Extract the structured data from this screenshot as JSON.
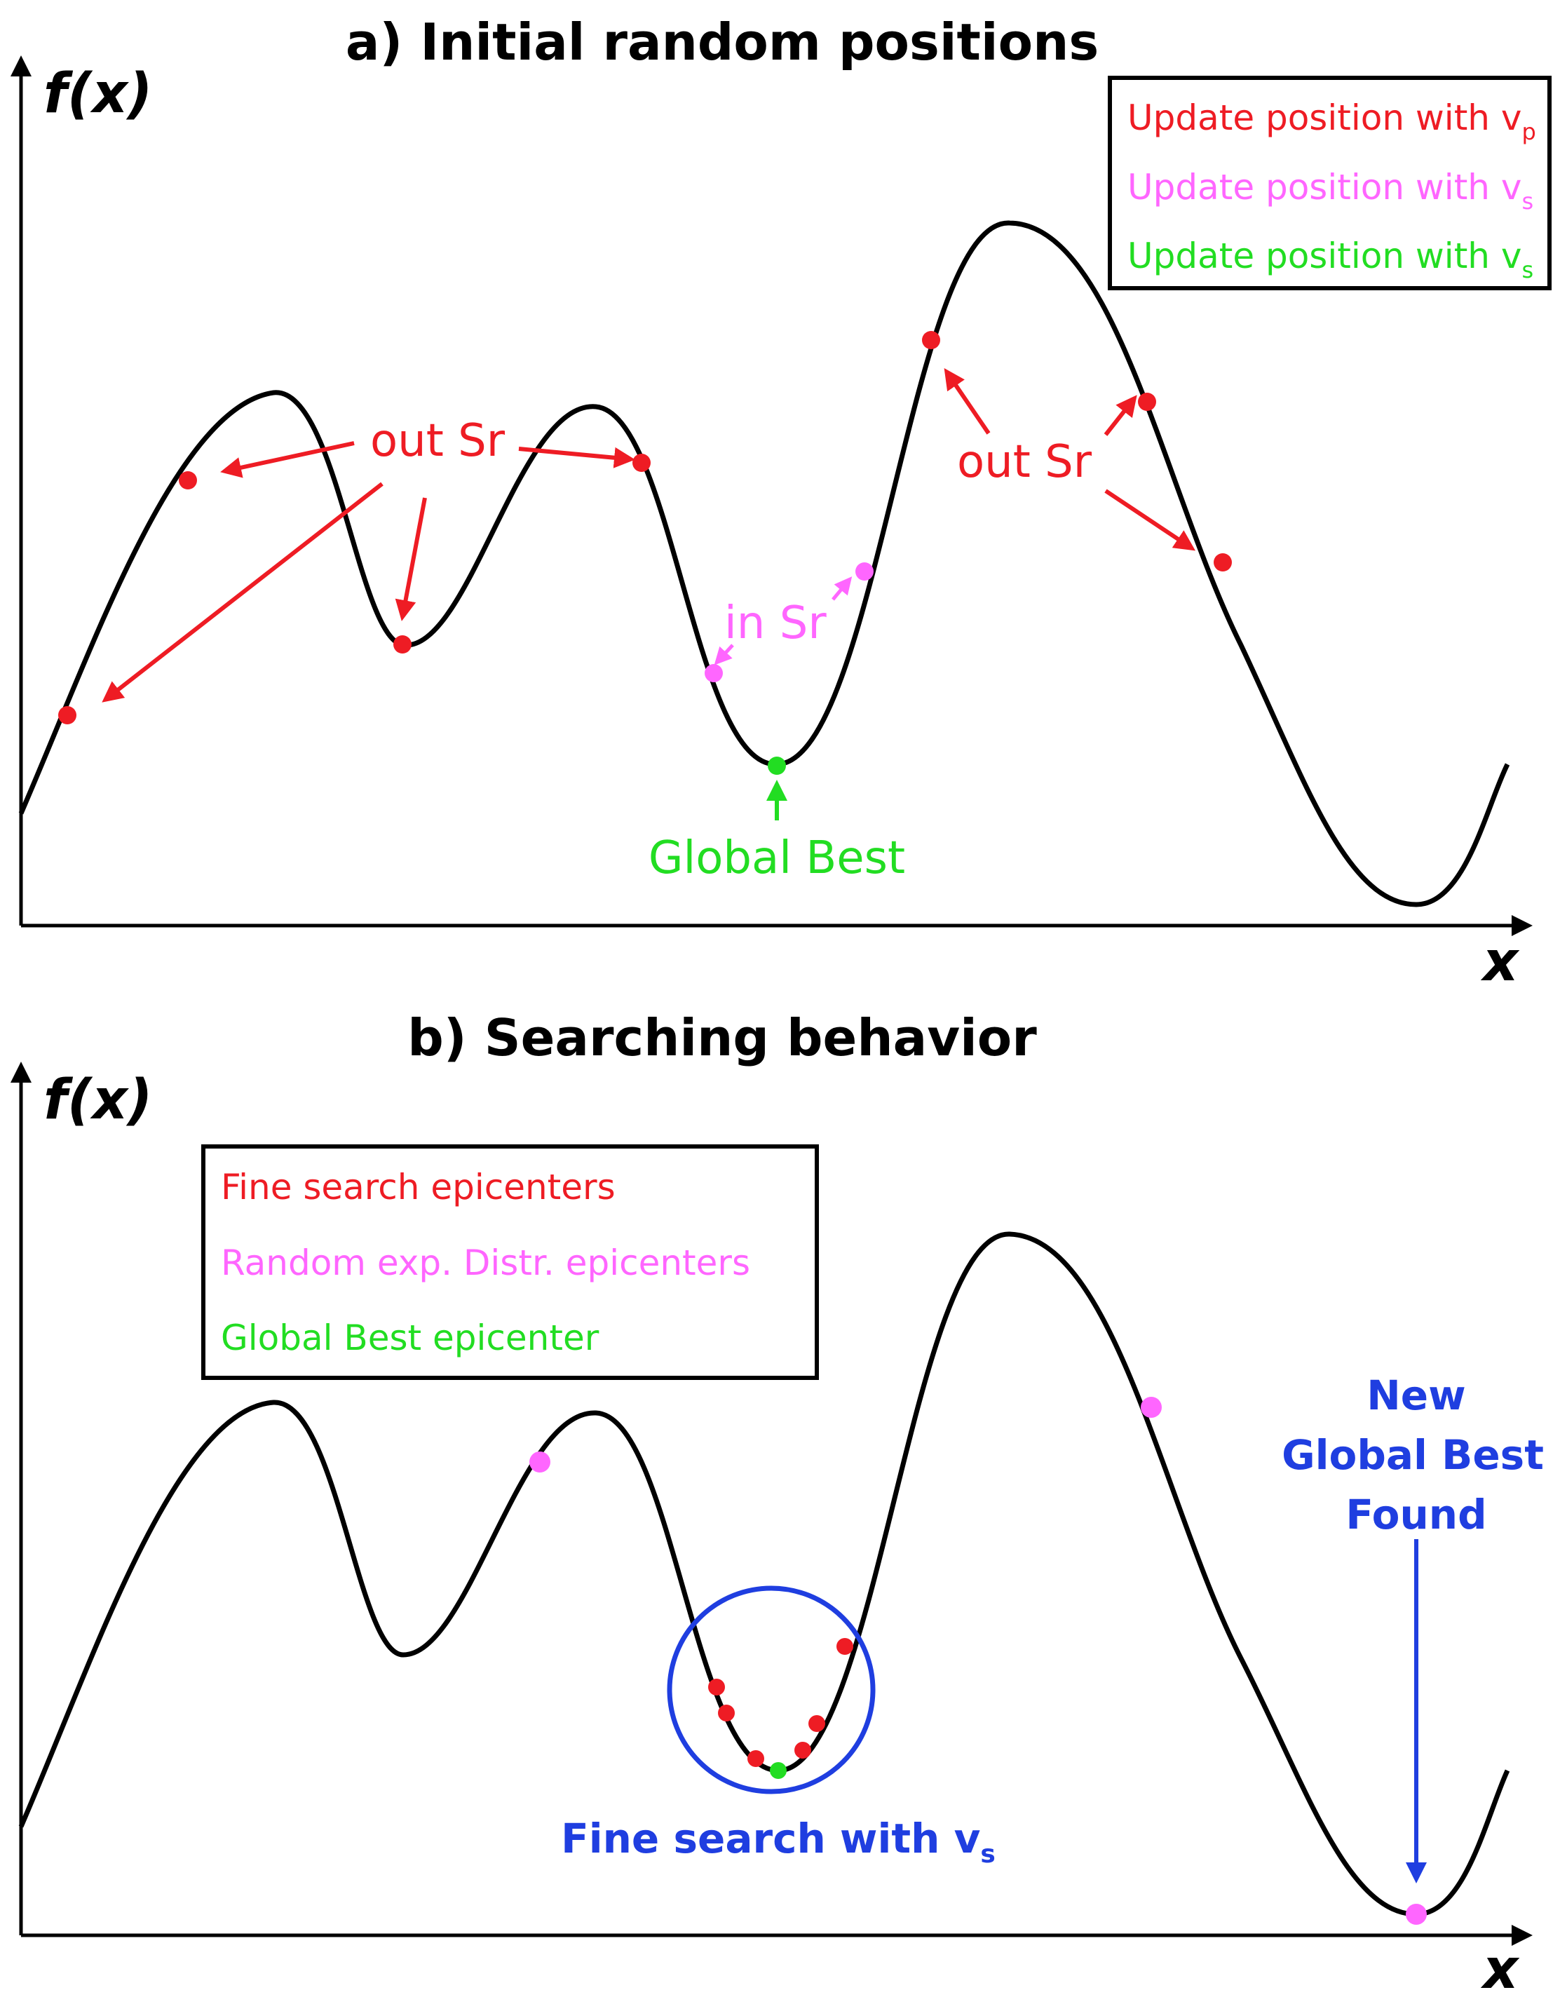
{
  "colors": {
    "red": "#ee1c24",
    "magenta": "#ff66ff",
    "green": "#22dd22",
    "blue": "#1f3ee0",
    "black": "#000000"
  },
  "panel_a": {
    "title": "a) Initial random positions",
    "y_label": "f(x)",
    "x_label": "x",
    "legend": [
      {
        "text": "Update position with v",
        "sub": "p",
        "color": "red"
      },
      {
        "text": "Update position with v",
        "sub": "s",
        "color": "magenta"
      },
      {
        "text": "Update position with v",
        "sub": "s",
        "color": "green"
      }
    ],
    "annotations": {
      "out_sr_left": "out Sr",
      "out_sr_right": "out Sr",
      "in_sr": "in Sr",
      "global_best": "Global Best"
    }
  },
  "panel_b": {
    "title": "b) Searching behavior",
    "y_label": "f(x)",
    "x_label": "x",
    "legend": [
      {
        "text": "Fine search epicenters",
        "color": "red"
      },
      {
        "text": "Random exp. Distr. epicenters",
        "color": "magenta"
      },
      {
        "text": "Global Best epicenter",
        "color": "green"
      }
    ],
    "annotations": {
      "new_global_best": [
        "New",
        "Global Best",
        "Found"
      ],
      "fine_search": "Fine search with v",
      "fine_search_sub": "s"
    }
  }
}
